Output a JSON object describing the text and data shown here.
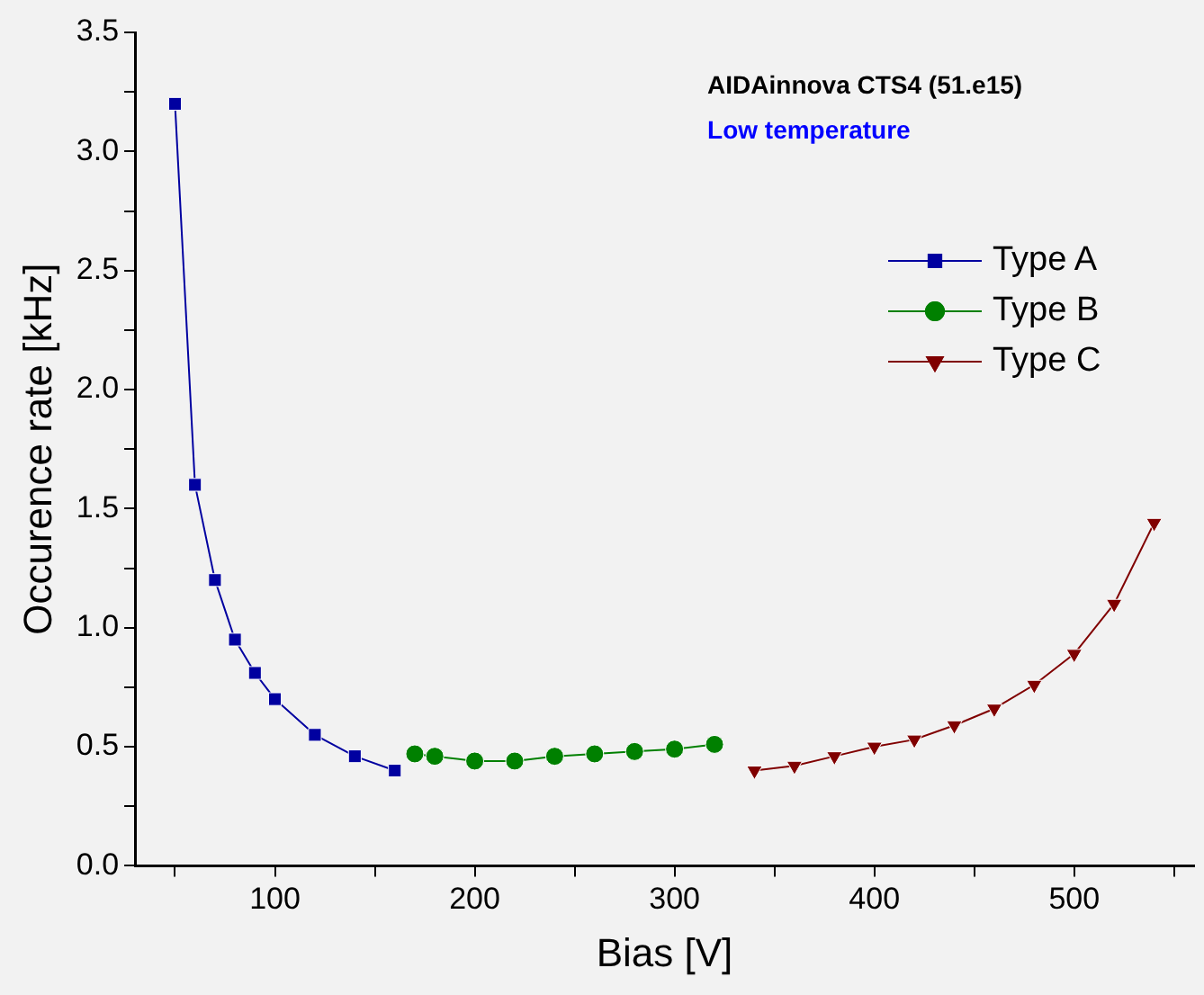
{
  "chart_data": {
    "type": "line",
    "title": "AIDAinnova CTS4 (51.e15)",
    "subtitle": "Low temperature",
    "xlabel": "Bias [V]",
    "ylabel": "Occurence rate [kHz]",
    "xlim": [
      30,
      560
    ],
    "xticks": [
      {
        "value": 50,
        "label": null
      },
      100,
      {
        "value": 150,
        "label": null
      },
      200,
      {
        "value": 250,
        "label": null
      },
      300,
      {
        "value": 350,
        "label": null
      },
      400,
      {
        "value": 450,
        "label": null
      },
      500,
      {
        "value": 550,
        "label": null
      }
    ],
    "ylim": [
      0,
      3.5
    ],
    "yticks": [
      {
        "value": 0,
        "label": "0.0"
      },
      {
        "value": 0.25,
        "label": null
      },
      {
        "value": 0.5,
        "label": "0.5"
      },
      {
        "value": 0.75,
        "label": null
      },
      {
        "value": 1,
        "label": "1.0"
      },
      {
        "value": 1.25,
        "label": null
      },
      {
        "value": 1.5,
        "label": "1.5"
      },
      {
        "value": 1.75,
        "label": null
      },
      {
        "value": 2,
        "label": "2.0"
      },
      {
        "value": 2.25,
        "label": null
      },
      {
        "value": 2.5,
        "label": "2.5"
      },
      {
        "value": 2.75,
        "label": null
      },
      {
        "value": 3,
        "label": "3.0"
      },
      {
        "value": 3.25,
        "label": null
      },
      {
        "value": 3.5,
        "label": "3.5"
      }
    ],
    "grid": false,
    "legend": "top right",
    "line_style": "solid",
    "series": [
      {
        "name": "Type A",
        "color": "#0000a0",
        "marker": "square",
        "x": [
          50,
          60,
          70,
          80,
          90,
          100,
          120,
          140,
          160
        ],
        "values": [
          3.2,
          1.6,
          1.2,
          0.95,
          0.81,
          0.7,
          0.55,
          0.46,
          0.4
        ]
      },
      {
        "name": "Type B",
        "color": "#008000",
        "marker": "circle",
        "x": [
          170,
          180,
          200,
          220,
          240,
          260,
          280,
          300,
          320
        ],
        "values": [
          0.47,
          0.46,
          0.44,
          0.44,
          0.46,
          0.47,
          0.48,
          0.49,
          0.51
        ]
      },
      {
        "name": "Type C",
        "color": "#800000",
        "marker": "triangle",
        "x": [
          340,
          360,
          380,
          400,
          420,
          440,
          460,
          480,
          500,
          520,
          540
        ],
        "values": [
          0.4,
          0.42,
          0.46,
          0.5,
          0.53,
          0.59,
          0.66,
          0.76,
          0.89,
          1.1,
          1.44
        ]
      }
    ]
  }
}
